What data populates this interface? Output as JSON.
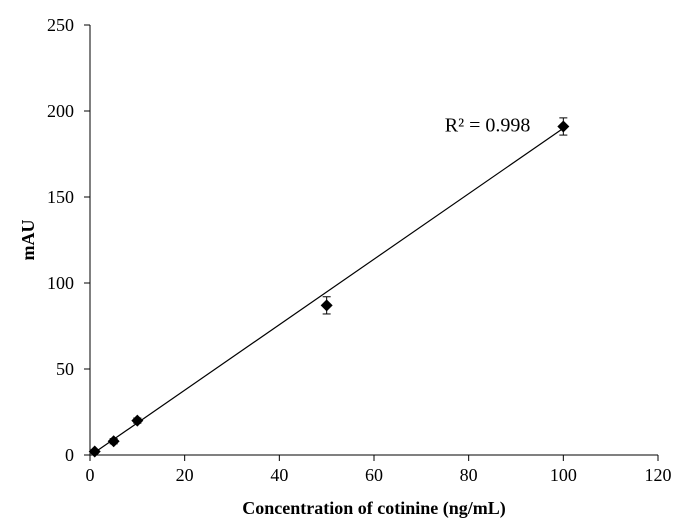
{
  "chart_data": {
    "type": "scatter",
    "title": "",
    "xlabel": "Concentration of cotinine (ng/mL)",
    "ylabel": "mAU",
    "xlim": [
      0,
      120
    ],
    "ylim": [
      0,
      250
    ],
    "xticks": [
      0,
      20,
      40,
      60,
      80,
      100,
      120
    ],
    "yticks": [
      0,
      50,
      100,
      150,
      200,
      250
    ],
    "grid": false,
    "legend": "none",
    "marker": "diamond",
    "marker_color": "#000000",
    "series": [
      {
        "x": [
          1,
          5,
          10,
          50,
          100
        ],
        "y": [
          2,
          8,
          20,
          87,
          191
        ],
        "error": [
          1,
          1.5,
          1.5,
          5,
          5
        ]
      }
    ],
    "trendline": {
      "type": "linear",
      "x": [
        1,
        100
      ],
      "y": [
        1.5,
        190
      ]
    },
    "annotations": [
      {
        "text": "R² = 0.998",
        "x": 84,
        "y": 188
      }
    ]
  }
}
